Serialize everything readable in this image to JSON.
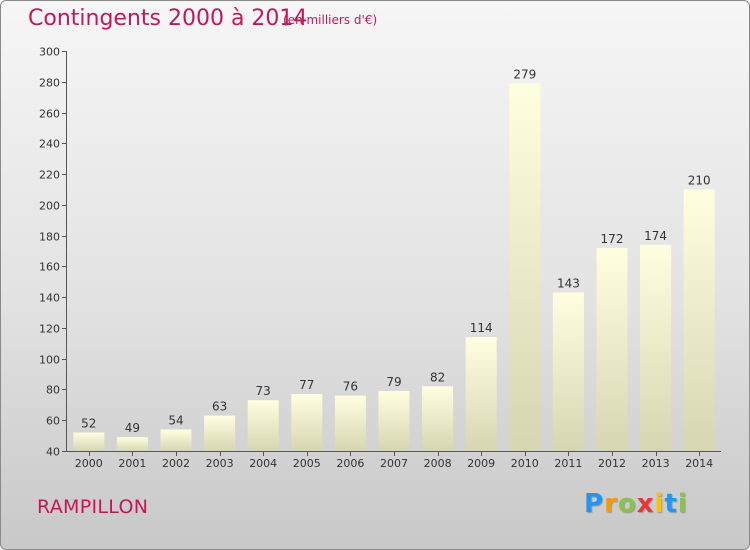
{
  "header": {
    "title": "Contingents 2000 à 2014",
    "subtitle": "(en milliers d'€)"
  },
  "footer": {
    "place": "RAMPILLON",
    "logo_letters": [
      "P",
      "r",
      "o",
      "x",
      "i",
      "t",
      "i"
    ],
    "logo_colors": [
      "#2196f3",
      "#ff9800",
      "#8bc34a",
      "#e53935",
      "#ffc107",
      "#2196f3",
      "#8bc34a"
    ]
  },
  "chart_data": {
    "type": "bar",
    "title": "Contingents 2000 à 2014",
    "subtitle": "(en milliers d'€)",
    "categories": [
      "2000",
      "2001",
      "2002",
      "2003",
      "2004",
      "2005",
      "2006",
      "2007",
      "2008",
      "2009",
      "2010",
      "2011",
      "2012",
      "2013",
      "2014"
    ],
    "values": [
      52,
      49,
      54,
      63,
      73,
      77,
      76,
      79,
      82,
      114,
      279,
      143,
      172,
      174,
      210
    ],
    "ylim": [
      40,
      300
    ],
    "yticks": [
      40,
      60,
      80,
      100,
      120,
      140,
      160,
      180,
      200,
      220,
      240,
      260,
      280,
      300
    ],
    "grid": false,
    "bar_color_top": "#ffffe0",
    "bar_color_bottom": "#d6d6b2"
  }
}
